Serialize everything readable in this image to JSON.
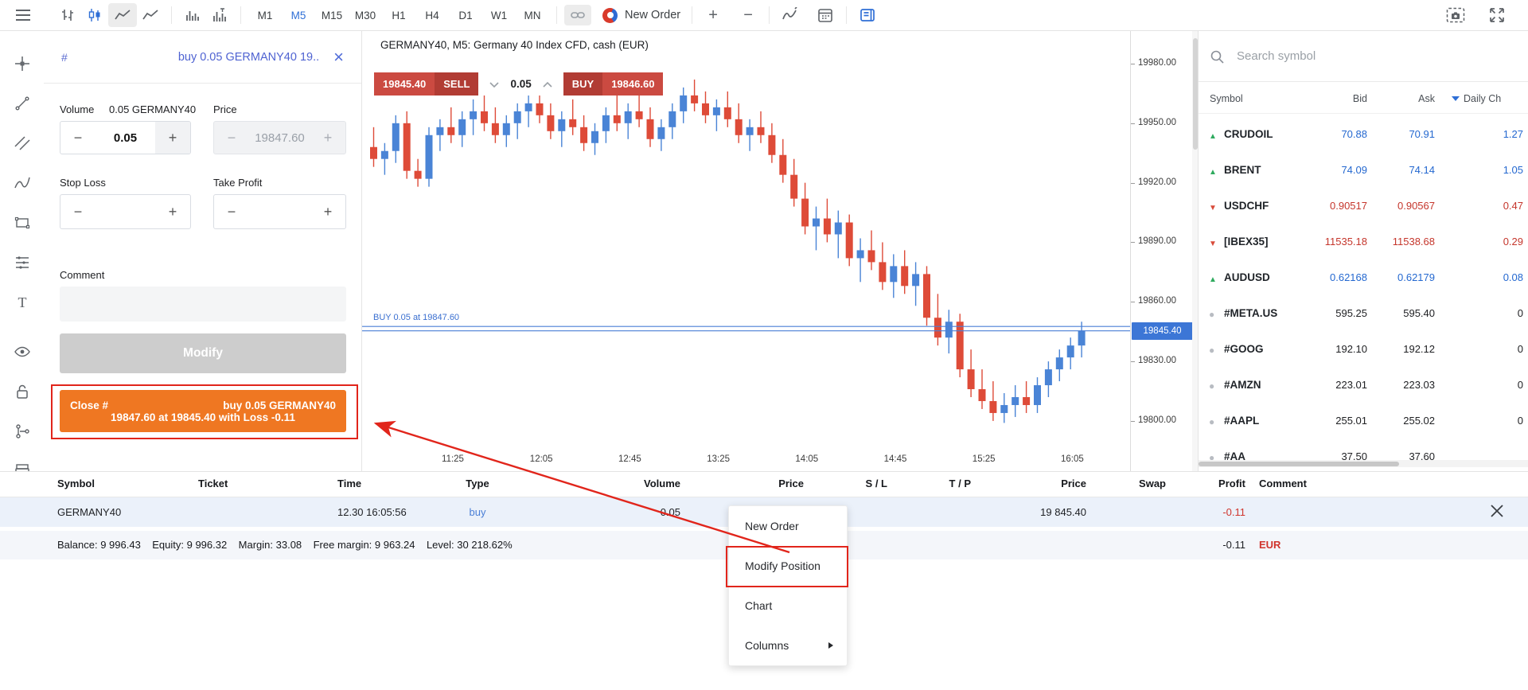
{
  "toolbar": {
    "timeframes": [
      "M1",
      "M5",
      "M15",
      "M30",
      "H1",
      "H4",
      "D1",
      "W1",
      "MN"
    ],
    "active_timeframe": "M5",
    "new_order_label": "New Order",
    "zoom_in": "+",
    "zoom_out": "−",
    "icons": [
      "menu",
      "bar-chart",
      "candlestick-chart",
      "area-chart",
      "line-chart",
      "volume",
      "volume-profile",
      "link",
      "new-order-logo",
      "zoom-in",
      "zoom-out",
      "indicators",
      "calendar",
      "side-panel",
      "screenshot",
      "fullscreen"
    ]
  },
  "sidebar": {
    "icons": [
      "crosshair",
      "trendline",
      "channel",
      "curve",
      "shapes",
      "levels",
      "text",
      "eye",
      "lock",
      "objects",
      "archive",
      "list",
      "history",
      "journal"
    ]
  },
  "modify_panel": {
    "ticket_prefix": "#",
    "title": "buy 0.05 GERMANY40 19..",
    "close_icon": "×",
    "volume_label": "Volume",
    "volume_hint": "0.05 GERMANY40",
    "volume_value": "0.05",
    "price_label": "Price",
    "price_value": "19847.60",
    "stop_loss_label": "Stop Loss",
    "take_profit_label": "Take Profit",
    "comment_label": "Comment",
    "modify_label": "Modify",
    "close_line1_left": "Close #",
    "close_line1_right": "buy 0.05 GERMANY40",
    "close_line2": "19847.60 at 19845.40 with Loss -0.11",
    "minus": "−",
    "plus": "+"
  },
  "chart": {
    "title": "GERMANY40, M5: Germany 40 Index CFD, cash (EUR)",
    "sell_price": "19845.40",
    "sell_label": "SELL",
    "lot_value": "0.05",
    "buy_label": "BUY",
    "buy_price": "19846.60",
    "position_label": "BUY 0.05 at 19847.60",
    "price_tag": "19845.40",
    "price_ticks": [
      "19980.00",
      "19950.00",
      "19920.00",
      "19890.00",
      "19860.00",
      "19830.00",
      "19800.00"
    ],
    "time_ticks": [
      "11:25",
      "12:05",
      "12:45",
      "13:25",
      "14:05",
      "14:45",
      "15:25",
      "16:05"
    ],
    "chart_data": {
      "type": "candlestick",
      "symbol": "GERMANY40",
      "timeframe": "M5",
      "start_time": "10:50",
      "interval_min": 5,
      "y_range": [
        19795,
        19985
      ],
      "position_line": 19847.6,
      "bid_line": 19845.4,
      "candles": [
        [
          19938,
          19948,
          19928,
          19932
        ],
        [
          19932,
          19940,
          19924,
          19936
        ],
        [
          19936,
          19954,
          19930,
          19950
        ],
        [
          19950,
          19956,
          19922,
          19926
        ],
        [
          19926,
          19932,
          19918,
          19922
        ],
        [
          19922,
          19948,
          19918,
          19944
        ],
        [
          19944,
          19952,
          19936,
          19948
        ],
        [
          19948,
          19958,
          19940,
          19944
        ],
        [
          19944,
          19956,
          19938,
          19952
        ],
        [
          19952,
          19962,
          19944,
          19956
        ],
        [
          19956,
          19964,
          19946,
          19950
        ],
        [
          19950,
          19958,
          19940,
          19944
        ],
        [
          19944,
          19954,
          19938,
          19950
        ],
        [
          19950,
          19960,
          19942,
          19956
        ],
        [
          19956,
          19966,
          19948,
          19960
        ],
        [
          19960,
          19968,
          19950,
          19954
        ],
        [
          19954,
          19960,
          19942,
          19946
        ],
        [
          19946,
          19956,
          19938,
          19952
        ],
        [
          19952,
          19962,
          19944,
          19948
        ],
        [
          19948,
          19954,
          19936,
          19940
        ],
        [
          19940,
          19950,
          19934,
          19946
        ],
        [
          19946,
          19958,
          19940,
          19954
        ],
        [
          19954,
          19964,
          19946,
          19950
        ],
        [
          19950,
          19960,
          19942,
          19956
        ],
        [
          19956,
          19964,
          19948,
          19952
        ],
        [
          19952,
          19958,
          19938,
          19942
        ],
        [
          19942,
          19952,
          19936,
          19948
        ],
        [
          19948,
          19960,
          19942,
          19956
        ],
        [
          19956,
          19968,
          19950,
          19964
        ],
        [
          19964,
          19972,
          19956,
          19960
        ],
        [
          19960,
          19966,
          19950,
          19954
        ],
        [
          19954,
          19962,
          19946,
          19958
        ],
        [
          19958,
          19966,
          19948,
          19952
        ],
        [
          19952,
          19960,
          19940,
          19944
        ],
        [
          19944,
          19952,
          19936,
          19948
        ],
        [
          19948,
          19956,
          19940,
          19944
        ],
        [
          19944,
          19950,
          19930,
          19934
        ],
        [
          19934,
          19942,
          19920,
          19924
        ],
        [
          19924,
          19932,
          19908,
          19912
        ],
        [
          19912,
          19920,
          19894,
          19898
        ],
        [
          19898,
          19908,
          19886,
          19902
        ],
        [
          19902,
          19912,
          19890,
          19894
        ],
        [
          19894,
          19906,
          19882,
          19900
        ],
        [
          19900,
          19904,
          19878,
          19882
        ],
        [
          19882,
          19892,
          19870,
          19886
        ],
        [
          19886,
          19896,
          19876,
          19880
        ],
        [
          19880,
          19890,
          19866,
          19870
        ],
        [
          19870,
          19884,
          19862,
          19878
        ],
        [
          19878,
          19886,
          19864,
          19868
        ],
        [
          19868,
          19880,
          19858,
          19874
        ],
        [
          19874,
          19878,
          19848,
          19852
        ],
        [
          19852,
          19864,
          19838,
          19842
        ],
        [
          19842,
          19856,
          19834,
          19850
        ],
        [
          19850,
          19854,
          19822,
          19826
        ],
        [
          19826,
          19836,
          19812,
          19816
        ],
        [
          19816,
          19826,
          19806,
          19810
        ],
        [
          19810,
          19820,
          19800,
          19804
        ],
        [
          19804,
          19814,
          19799,
          19808
        ],
        [
          19808,
          19818,
          19802,
          19812
        ],
        [
          19812,
          19820,
          19804,
          19808
        ],
        [
          19808,
          19822,
          19804,
          19818
        ],
        [
          19818,
          19830,
          19812,
          19826
        ],
        [
          19826,
          19836,
          19820,
          19832
        ],
        [
          19832,
          19842,
          19826,
          19838
        ],
        [
          19838,
          19850,
          19832,
          19845.4
        ]
      ]
    }
  },
  "watchlist": {
    "search_placeholder": "Search symbol",
    "columns": [
      "Symbol",
      "Bid",
      "Ask",
      "Daily Ch"
    ],
    "rows": [
      {
        "dir": "up",
        "symbol": "CRUDOIL",
        "bid": "70.88",
        "ask": "70.91",
        "change": "1.27"
      },
      {
        "dir": "up",
        "symbol": "BRENT",
        "bid": "74.09",
        "ask": "74.14",
        "change": "1.05"
      },
      {
        "dir": "down",
        "symbol": "USDCHF",
        "bid": "0.90517",
        "ask": "0.90567",
        "change": "0.47"
      },
      {
        "dir": "down",
        "symbol": "[IBEX35]",
        "bid": "11535.18",
        "ask": "11538.68",
        "change": "0.29"
      },
      {
        "dir": "up",
        "symbol": "AUDUSD",
        "bid": "0.62168",
        "ask": "0.62179",
        "change": "0.08"
      },
      {
        "dir": "flat",
        "symbol": "#META.US",
        "bid": "595.25",
        "ask": "595.40",
        "change": "0"
      },
      {
        "dir": "flat",
        "symbol": "#GOOG",
        "bid": "192.10",
        "ask": "192.12",
        "change": "0"
      },
      {
        "dir": "flat",
        "symbol": "#AMZN",
        "bid": "223.01",
        "ask": "223.03",
        "change": "0"
      },
      {
        "dir": "flat",
        "symbol": "#AAPL",
        "bid": "255.01",
        "ask": "255.02",
        "change": "0"
      },
      {
        "dir": "flat",
        "symbol": "#AA",
        "bid": "37.50",
        "ask": "37.60",
        "change": ""
      }
    ]
  },
  "positions": {
    "columns": [
      "Symbol",
      "Ticket",
      "Time",
      "Type",
      "Volume",
      "Price",
      "S / L",
      "T / P",
      "Price",
      "Swap",
      "Profit",
      "Comment"
    ],
    "row": {
      "symbol": "GERMANY40",
      "ticket": "",
      "time": "12.30 16:05:56",
      "type": "buy",
      "volume": "0.05",
      "price_open": "",
      "sl": "",
      "tp": "",
      "price_current": "19 845.40",
      "swap": "",
      "profit": "-0.11",
      "comment": ""
    },
    "summary_text": "Balance: 9 996.43    Equity: 9 996.32    Margin: 33.08    Free margin: 9 963.24    Level: 30 218.62%",
    "summary_profit": "-0.11",
    "summary_currency": "EUR"
  },
  "context_menu": {
    "items": [
      "New Order",
      "Modify Position",
      "Chart",
      "Columns"
    ]
  },
  "colors": {
    "accent_blue": "#2f6fd6",
    "sell_red": "#cb4a41",
    "sell_red_dark": "#b13c34",
    "position_line_blue": "#4a7fd6",
    "up_blue": "#2468d0",
    "down_red": "#c5362c",
    "up_green": "#2eaa5e",
    "down_arrow_red": "#d84b3a",
    "close_orange": "#ef7722",
    "annotation_red": "#e1251b",
    "candle_up": "#4a84d6",
    "candle_down": "#de4b38"
  }
}
